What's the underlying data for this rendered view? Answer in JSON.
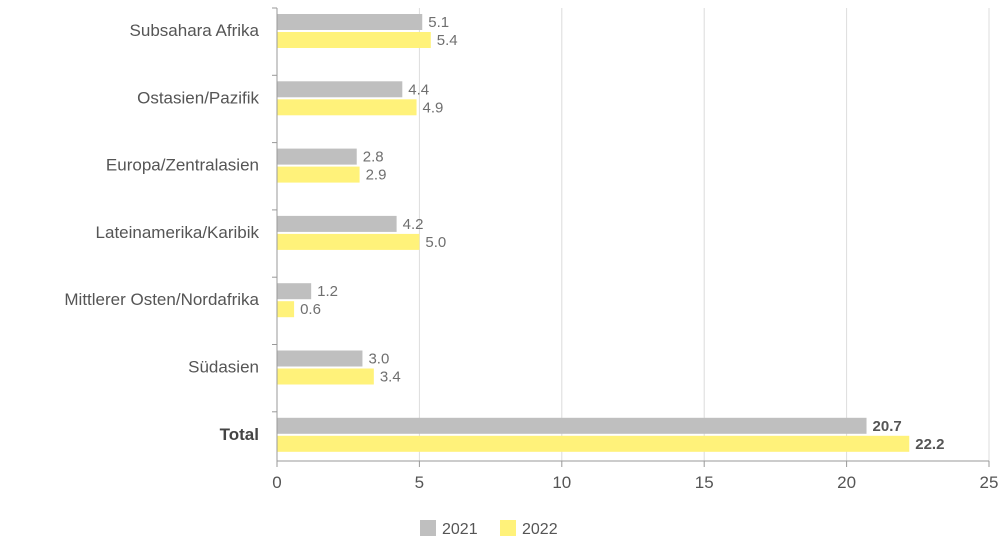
{
  "chart_data": {
    "type": "bar",
    "orientation": "horizontal",
    "categories": [
      "Subsahara Afrika",
      "Ostasien/Pazifik",
      "Europa/Zentralasien",
      "Lateinamerika/Karibik",
      "Mittlerer Osten/Nordafrika",
      "Südasien",
      "Total"
    ],
    "series": [
      {
        "name": "2021",
        "color": "#bfbfbf",
        "values": [
          5.1,
          4.4,
          2.8,
          4.2,
          1.2,
          3.0,
          20.7
        ],
        "labels": [
          "5.1",
          "4.4",
          "2.8",
          "4.2",
          "1.2",
          "3.0",
          "20.7"
        ]
      },
      {
        "name": "2022",
        "color": "#fff27a",
        "values": [
          5.4,
          4.9,
          2.9,
          5.0,
          0.6,
          3.4,
          22.2
        ],
        "labels": [
          "5.4",
          "4.9",
          "2.9",
          "5.0",
          "0.6",
          "3.4",
          "22.2"
        ]
      }
    ],
    "xlim": [
      0,
      25
    ],
    "xticks": [
      "0",
      "5",
      "10",
      "15",
      "20",
      "25"
    ],
    "grid": "vertical",
    "legend_position": "bottom-center",
    "bold_category": "Total"
  }
}
